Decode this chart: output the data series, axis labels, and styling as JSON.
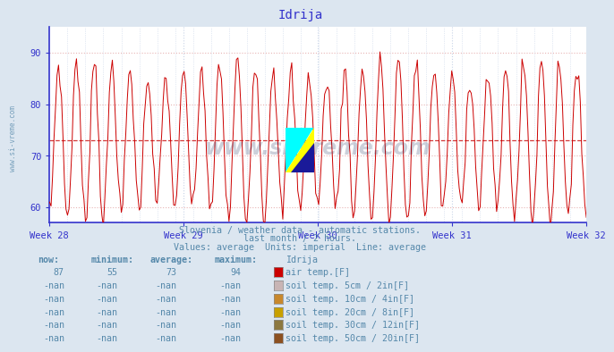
{
  "title": "Idrija",
  "subtitle1": "Slovenia / weather data - automatic stations.",
  "subtitle2": "last month / 2 hours.",
  "subtitle3": "Values: average  Units: imperial  Line: average",
  "xlabel_ticks": [
    "Week 28",
    "Week 29",
    "Week 30",
    "Week 31",
    "Week 32"
  ],
  "ylim": [
    57,
    95
  ],
  "yticks": [
    60,
    70,
    80,
    90
  ],
  "avg_line": 73,
  "bg_color": "#dce6f0",
  "plot_bg_color": "#ffffff",
  "hgrid_color": "#e8b4b4",
  "vgrid_color": "#c8d4e8",
  "axis_color": "#3333cc",
  "title_color": "#3333cc",
  "subtitle_color": "#5588aa",
  "watermark_text_color": "#1a2a5a",
  "line_color": "#cc0000",
  "avg_line_color": "#cc2222",
  "legend_items": [
    {
      "label": "air temp.[F]",
      "color": "#cc0000"
    },
    {
      "label": "soil temp. 5cm / 2in[F]",
      "color": "#c8b4b4"
    },
    {
      "label": "soil temp. 10cm / 4in[F]",
      "color": "#c8882c"
    },
    {
      "label": "soil temp. 20cm / 8in[F]",
      "color": "#c8a000"
    },
    {
      "label": "soil temp. 30cm / 12in[F]",
      "color": "#8c7840"
    },
    {
      "label": "soil temp. 50cm / 20in[F]",
      "color": "#8c5020"
    }
  ],
  "table_headers": [
    "now:",
    "minimum:",
    "average:",
    "maximum:",
    "Idrija"
  ],
  "table_row1": [
    "87",
    "55",
    "73",
    "94"
  ],
  "n_points": 360,
  "n_days": 30
}
